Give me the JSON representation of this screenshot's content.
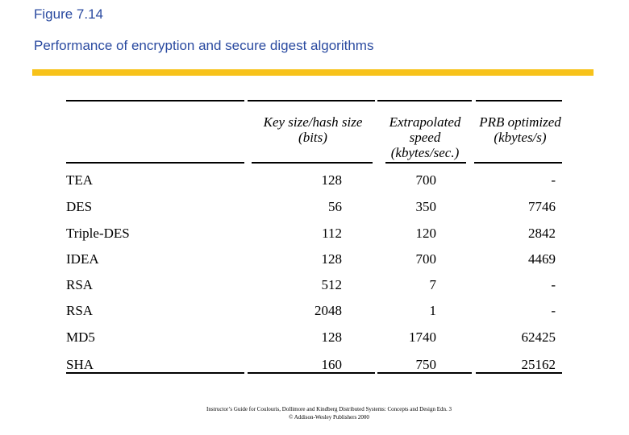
{
  "header": {
    "figure": "Figure 7.14",
    "title": "Performance of encryption and secure digest algorithms"
  },
  "table": {
    "columns": [
      [
        "Key size/hash size",
        "(bits)"
      ],
      [
        "Extrapolated",
        "speed",
        "(kbytes/sec.)"
      ],
      [
        "PRB optimized",
        "(kbytes/s)"
      ]
    ],
    "rows": [
      [
        "TEA",
        "128",
        "700",
        "-"
      ],
      [
        "DES",
        "56",
        "350",
        "7746"
      ],
      [
        "Triple-DES",
        "112",
        "120",
        "2842"
      ],
      [
        "IDEA",
        "128",
        "700",
        "4469"
      ],
      [
        "RSA",
        "512",
        "7",
        "-"
      ],
      [
        "RSA",
        "2048",
        "1",
        "-"
      ],
      [
        "MD5",
        "128",
        "1740",
        "62425"
      ],
      [
        "SHA",
        "160",
        "750",
        "25162"
      ]
    ]
  },
  "footer": [
    "Instructor’s Guide for Coulouris, Dollimore and Kindberg  Distributed Systems: Concepts and Design  Edn. 3",
    "© Addison-Wesley Publishers 2000"
  ]
}
